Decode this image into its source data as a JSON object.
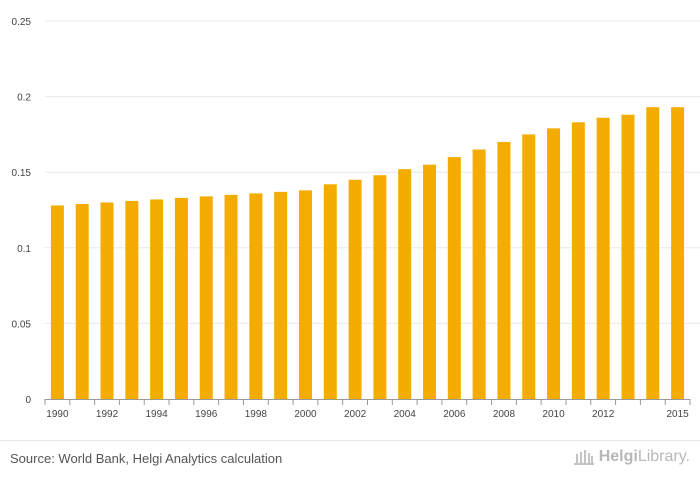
{
  "chart_data": {
    "type": "bar",
    "categories": [
      "1990",
      "1991",
      "1992",
      "1993",
      "1994",
      "1995",
      "1996",
      "1997",
      "1998",
      "1999",
      "2000",
      "2001",
      "2002",
      "2003",
      "2004",
      "2005",
      "2006",
      "2007",
      "2008",
      "2009",
      "2010",
      "2011",
      "2012",
      "2013",
      "2014",
      "2015"
    ],
    "x_tick_labels": [
      "1990",
      "1992",
      "1994",
      "1996",
      "1998",
      "2000",
      "2002",
      "2004",
      "2006",
      "2008",
      "2010",
      "2012",
      "2015"
    ],
    "values": [
      0.128,
      0.129,
      0.13,
      0.131,
      0.132,
      0.133,
      0.134,
      0.135,
      0.136,
      0.137,
      0.138,
      0.142,
      0.145,
      0.148,
      0.152,
      0.155,
      0.16,
      0.165,
      0.17,
      0.175,
      0.179,
      0.183,
      0.186,
      0.188,
      0.193,
      0.193
    ],
    "y_ticks": [
      "0",
      "0.05",
      "0.1",
      "0.15",
      "0.2",
      "0.25"
    ],
    "ylim": [
      0,
      0.25
    ],
    "bar_color": "#f5ac00",
    "grid": true,
    "title": "",
    "xlabel": "",
    "ylabel": ""
  },
  "footer": {
    "source": "Source: World Bank, Helgi Analytics calculation",
    "brand_bold": "Helgi",
    "brand_rest": "Library."
  },
  "icons": {
    "brand": "library-building-icon"
  }
}
